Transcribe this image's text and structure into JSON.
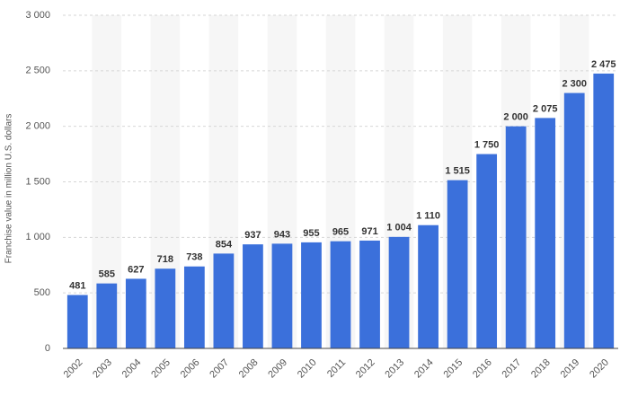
{
  "chart_data": {
    "type": "bar",
    "y_label": "Franchise value in million U.S. dollars",
    "categories": [
      "2002",
      "2003",
      "2004",
      "2005",
      "2006",
      "2007",
      "2008",
      "2009",
      "2010",
      "2011",
      "2012",
      "2013",
      "2014",
      "2015",
      "2016",
      "2017",
      "2018",
      "2019",
      "2020"
    ],
    "values": [
      481,
      585,
      627,
      718,
      738,
      854,
      937,
      943,
      955,
      965,
      971,
      1004,
      1110,
      1515,
      1750,
      2000,
      2075,
      2300,
      2475
    ],
    "value_labels": [
      "481",
      "585",
      "627",
      "718",
      "738",
      "854",
      "937",
      "943",
      "955",
      "965",
      "971",
      "1 004",
      "1 110",
      "1 515",
      "1 750",
      "2 000",
      "2 075",
      "2 300",
      "2 475"
    ],
    "color": "#3b70db",
    "ylim": [
      0,
      3000
    ],
    "yticks": [
      0,
      500,
      {
        "value": 1000,
        "label": "1 000"
      },
      {
        "value": 1500,
        "label": "1 500"
      },
      {
        "value": 2000,
        "label": "2 000"
      },
      {
        "value": 2500,
        "label": "2 500"
      },
      {
        "value": 3000,
        "label": "3 000"
      }
    ],
    "grid": true
  }
}
